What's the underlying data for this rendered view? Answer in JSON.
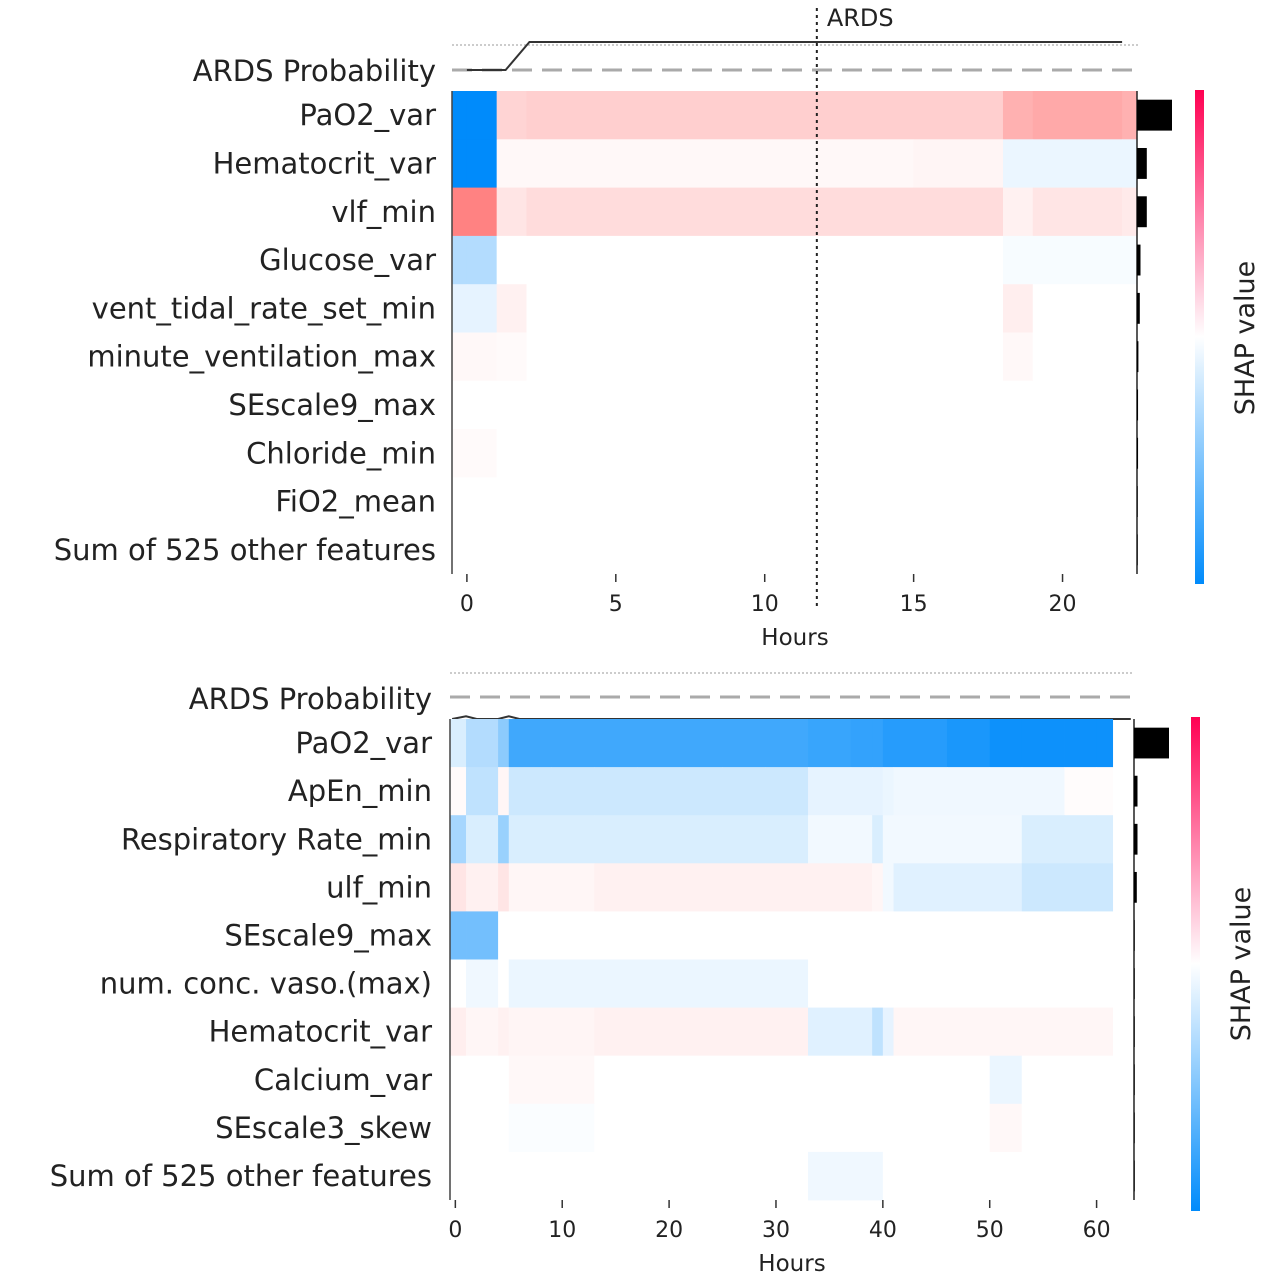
{
  "chart_data": [
    {
      "type": "heatmap",
      "title": "",
      "xlabel": "Hours",
      "colorbar_label": "SHAP value",
      "x_range": [
        -0.5,
        22.5
      ],
      "x_ticks": [
        0,
        5,
        10,
        15,
        20
      ],
      "annotation": {
        "label": "ARDS",
        "x": 11.75
      },
      "output_row_label": "ARDS Probability",
      "probability_curve": [
        [
          0,
          0.0
        ],
        [
          1.3,
          0.0
        ],
        [
          2.1,
          1.0
        ],
        [
          22.0,
          1.0
        ]
      ],
      "time_columns": [
        0.5,
        1.0,
        1.0,
        13.0,
        3.0,
        1.0,
        3.0,
        0.5
      ],
      "rows": [
        {
          "feature": "PaO2_var",
          "values": [
            -1.0,
            -1.0,
            0.25,
            0.28,
            0.28,
            0.45,
            0.5,
            0.45
          ],
          "importance": 1.0
        },
        {
          "feature": "Hematocrit_var",
          "values": [
            -1.0,
            -1.0,
            0.04,
            0.04,
            0.06,
            -0.08,
            -0.08,
            -0.08
          ],
          "importance": 0.28
        },
        {
          "feature": "vlf_min",
          "values": [
            0.72,
            0.72,
            0.15,
            0.2,
            0.2,
            0.08,
            0.15,
            0.12
          ],
          "importance": 0.28
        },
        {
          "feature": "Glucose_var",
          "values": [
            -0.3,
            -0.3,
            0.0,
            0.0,
            0.0,
            -0.03,
            -0.03,
            -0.03
          ],
          "importance": 0.1
        },
        {
          "feature": "vent_tidal_rate_set_min",
          "values": [
            -0.1,
            -0.1,
            0.08,
            0.0,
            0.0,
            0.1,
            0.0,
            0.0
          ],
          "importance": 0.08
        },
        {
          "feature": "minute_ventilation_max",
          "values": [
            0.04,
            0.04,
            0.03,
            0.0,
            0.0,
            0.04,
            0.0,
            0.0
          ],
          "importance": 0.04
        },
        {
          "feature": "SEscale9_max",
          "values": [
            0.0,
            0.0,
            0.0,
            0.0,
            0.0,
            0.0,
            0.0,
            0.0
          ],
          "importance": 0.03
        },
        {
          "feature": "Chloride_min",
          "values": [
            0.03,
            0.03,
            0.0,
            0.0,
            0.0,
            0.0,
            0.0,
            0.0
          ],
          "importance": 0.03
        },
        {
          "feature": "FiO2_mean",
          "values": [
            0.0,
            0.0,
            0.0,
            0.0,
            0.0,
            0.0,
            0.0,
            0.0
          ],
          "importance": 0.02
        },
        {
          "feature": "Sum of 525 other features",
          "values": [
            0.0,
            0.0,
            0.0,
            0.0,
            0.0,
            0.0,
            0.0,
            0.0
          ],
          "importance": 0.02
        }
      ]
    },
    {
      "type": "heatmap",
      "title": "",
      "xlabel": "Hours",
      "colorbar_label": "SHAP value",
      "x_range": [
        -0.5,
        63.5
      ],
      "x_ticks": [
        0,
        10,
        20,
        30,
        40,
        50,
        60
      ],
      "output_row_label": "ARDS Probability",
      "probability_curve": [
        [
          -0.3,
          0.0
        ],
        [
          1.0,
          0.3
        ],
        [
          2.0,
          0.0
        ],
        [
          4.0,
          0.0
        ],
        [
          5.0,
          0.3
        ],
        [
          6.0,
          0.0
        ],
        [
          63.2,
          0.0
        ]
      ],
      "time_columns": [
        1.5,
        3.0,
        1.0,
        4.0,
        4.0,
        4.0,
        4.0,
        4.0,
        4.0,
        4.0,
        4.0,
        2.0,
        1.0,
        1.0,
        5.0,
        4.0,
        3.0,
        4.0,
        3.0,
        1.5
      ],
      "rows": [
        {
          "feature": "PaO2_var",
          "values": [
            -0.15,
            -0.3,
            -0.45,
            -0.75,
            -0.75,
            -0.75,
            -0.75,
            -0.75,
            -0.75,
            -0.75,
            -0.78,
            -0.8,
            -0.8,
            -0.85,
            -0.85,
            -0.9,
            -0.95,
            -0.95,
            -0.95,
            -0.95
          ],
          "importance": 1.0
        },
        {
          "feature": "ApEn_min",
          "values": [
            0.03,
            -0.25,
            0.05,
            -0.2,
            -0.2,
            -0.2,
            -0.2,
            -0.2,
            -0.2,
            -0.2,
            -0.1,
            -0.1,
            -0.1,
            -0.08,
            -0.06,
            -0.06,
            -0.06,
            -0.06,
            0.02,
            0.02
          ],
          "importance": 0.1
        },
        {
          "feature": "Respiratory Rate_min",
          "values": [
            -0.35,
            -0.15,
            -0.4,
            -0.15,
            -0.15,
            -0.15,
            -0.15,
            -0.15,
            -0.15,
            -0.15,
            -0.05,
            -0.05,
            -0.15,
            -0.05,
            -0.05,
            -0.05,
            -0.05,
            -0.15,
            -0.15,
            -0.15
          ],
          "importance": 0.1
        },
        {
          "feature": "ulf_min",
          "values": [
            0.15,
            0.08,
            0.15,
            0.05,
            0.05,
            0.08,
            0.08,
            0.08,
            0.08,
            0.08,
            0.08,
            0.08,
            0.05,
            -0.05,
            -0.12,
            -0.12,
            -0.12,
            -0.2,
            -0.2,
            -0.2
          ],
          "importance": 0.08
        },
        {
          "feature": "SEscale9_max",
          "values": [
            -0.55,
            -0.55,
            0.0,
            0.0,
            0.0,
            0.0,
            0.0,
            0.0,
            0.0,
            0.0,
            0.0,
            0.0,
            0.0,
            0.0,
            0.0,
            0.0,
            0.0,
            0.0,
            0.0,
            0.0
          ],
          "importance": 0.02
        },
        {
          "feature": "num. conc. vaso.(max)",
          "values": [
            0.0,
            -0.06,
            0.0,
            -0.08,
            -0.08,
            -0.08,
            -0.08,
            -0.08,
            -0.08,
            -0.08,
            0.0,
            0.0,
            0.0,
            0.0,
            0.0,
            0.0,
            0.0,
            0.0,
            0.0,
            0.0
          ],
          "importance": 0.02
        },
        {
          "feature": "Hematocrit_var",
          "values": [
            0.1,
            0.05,
            0.08,
            0.06,
            0.06,
            0.08,
            0.08,
            0.08,
            0.08,
            0.08,
            -0.12,
            -0.12,
            -0.25,
            -0.1,
            0.05,
            0.05,
            0.05,
            0.05,
            0.05,
            0.05
          ],
          "importance": 0.02
        },
        {
          "feature": "Calcium_var",
          "values": [
            0.0,
            0.0,
            0.0,
            0.04,
            0.04,
            0.0,
            0.0,
            0.0,
            0.0,
            0.0,
            0.0,
            0.0,
            0.0,
            0.0,
            0.0,
            0.0,
            -0.08,
            0.0,
            0.0,
            0.0
          ],
          "importance": 0.02
        },
        {
          "feature": "SEscale3_skew",
          "values": [
            0.0,
            0.0,
            0.0,
            -0.02,
            -0.02,
            0.0,
            0.0,
            0.0,
            0.0,
            0.0,
            0.0,
            0.0,
            0.0,
            0.0,
            0.0,
            0.0,
            0.04,
            0.0,
            0.0,
            0.0
          ],
          "importance": 0.02
        },
        {
          "feature": "Sum of 525 other features",
          "values": [
            0.0,
            0.0,
            0.0,
            0.0,
            0.0,
            0.0,
            0.0,
            0.0,
            0.0,
            0.0,
            -0.06,
            -0.06,
            -0.06,
            0.0,
            0.0,
            0.0,
            0.0,
            0.0,
            0.0,
            0.0
          ],
          "importance": 0.02
        }
      ]
    }
  ]
}
